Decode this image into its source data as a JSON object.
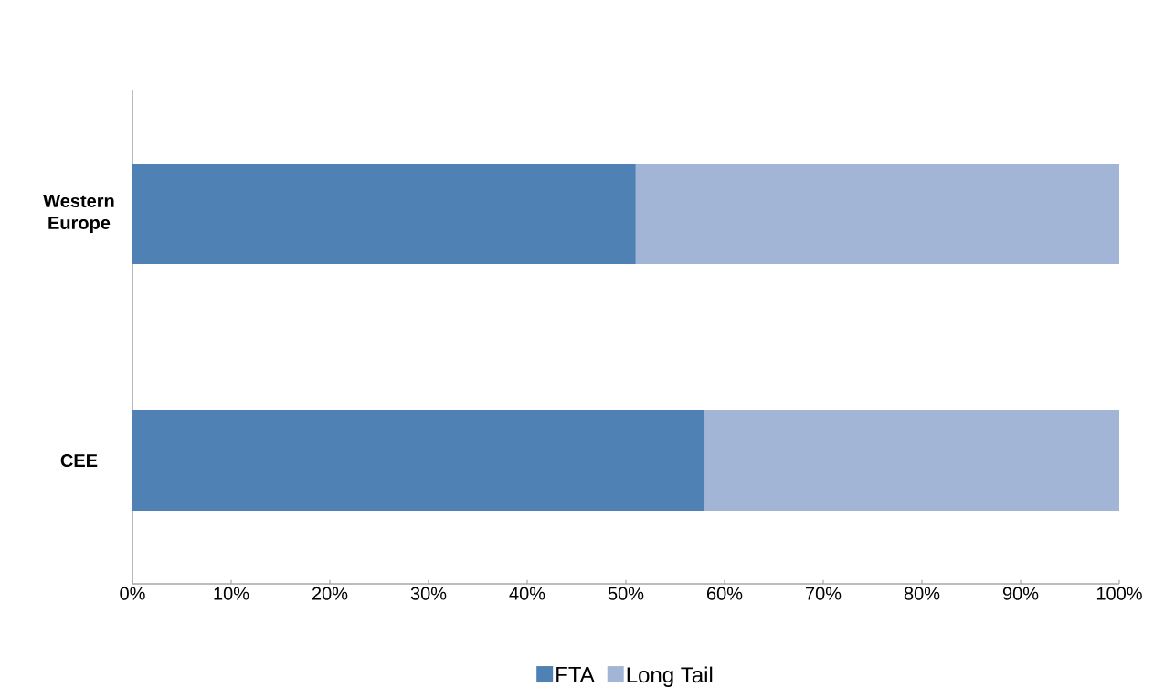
{
  "chart_data": {
    "type": "bar",
    "orientation": "horizontal",
    "stacked": true,
    "categories": [
      "Western Europe",
      "CEE"
    ],
    "series": [
      {
        "name": "FTA",
        "color": "#4f81b4",
        "values": [
          51,
          58
        ]
      },
      {
        "name": "Long Tail",
        "color": "#a3b5d6",
        "values": [
          49,
          42
        ]
      }
    ],
    "xlim": [
      0,
      100
    ],
    "xticks": [
      {
        "value": 0,
        "label": "0%"
      },
      {
        "value": 10,
        "label": "10%"
      },
      {
        "value": 20,
        "label": "20%"
      },
      {
        "value": 30,
        "label": "30%"
      },
      {
        "value": 40,
        "label": "40%"
      },
      {
        "value": 50,
        "label": "50%"
      },
      {
        "value": 60,
        "label": "60%"
      },
      {
        "value": 70,
        "label": "70%"
      },
      {
        "value": 80,
        "label": "80%"
      },
      {
        "value": 90,
        "label": "90%"
      },
      {
        "value": 100,
        "label": "100%"
      }
    ],
    "legend": "bottom",
    "grid": false
  }
}
